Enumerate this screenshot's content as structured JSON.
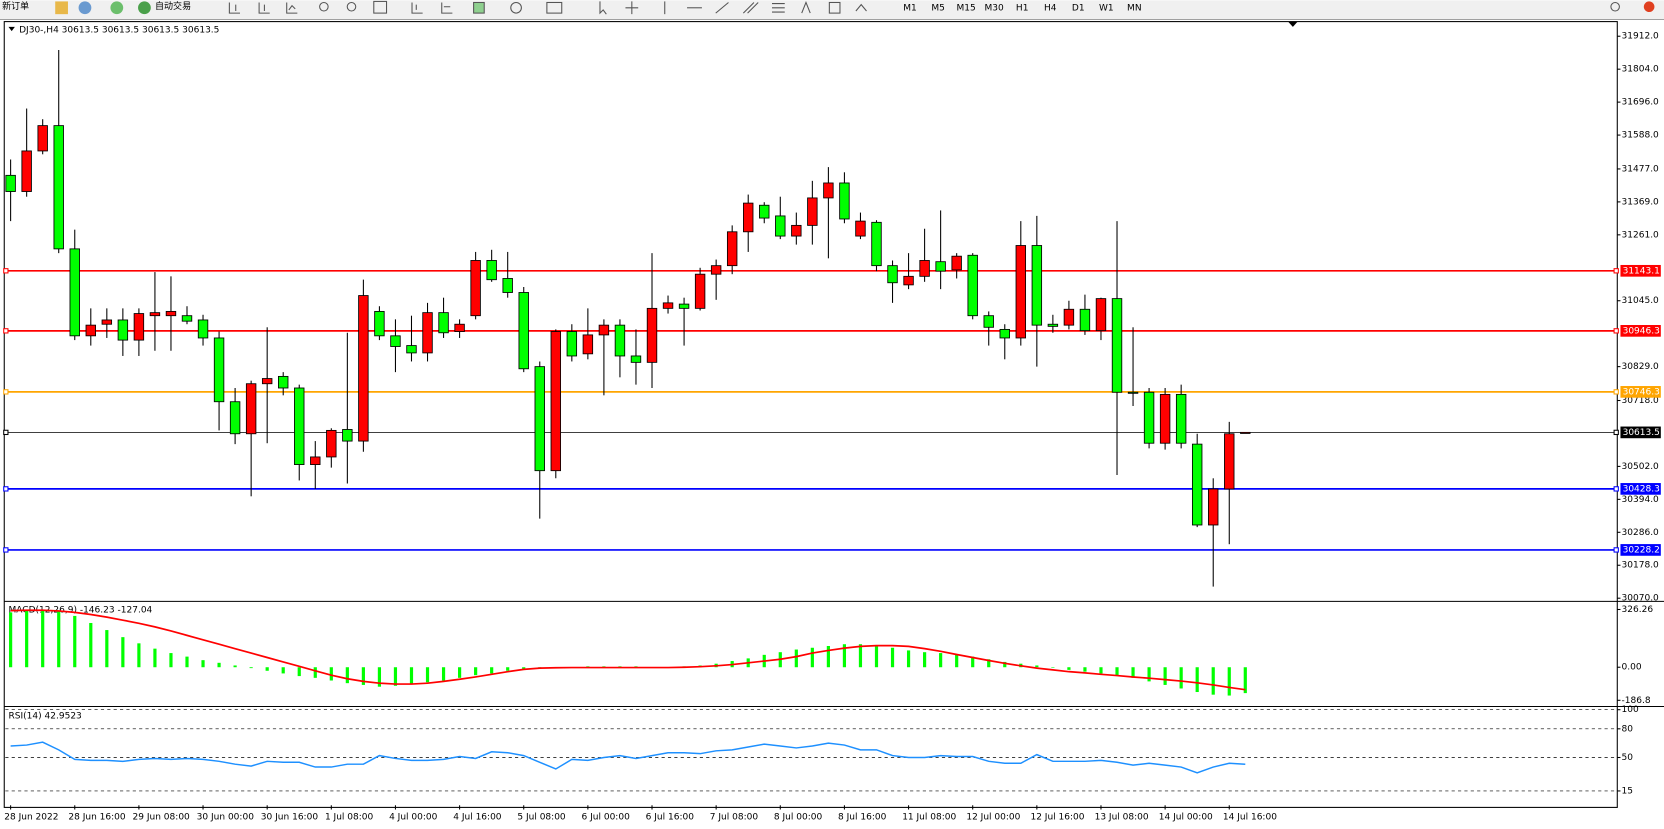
{
  "toolbar": {
    "new_order": "新订单",
    "auto_trading": "自动交易",
    "timeframes": [
      "M1",
      "M5",
      "M15",
      "M30",
      "H1",
      "H4",
      "D1",
      "W1",
      "MN"
    ]
  },
  "chart_data": [
    {
      "type": "candlestick",
      "title": "DJ30-,H4  30613.5 30613.5 30613.5 30613.5",
      "up_color": "#ff0000",
      "down_color": "#00ff00",
      "categories": [
        "28 Jun 2022",
        null,
        null,
        null,
        "28 Jun 16:00",
        null,
        null,
        null,
        "29 Jun 08:00",
        null,
        null,
        null,
        "30 Jun 00:00",
        null,
        null,
        null,
        "30 Jun 16:00",
        null,
        null,
        null,
        "1 Jul 08:00",
        null,
        null,
        null,
        "4 Jul 00:00",
        null,
        null,
        null,
        "4 Jul 16:00",
        null,
        null,
        null,
        "5 Jul 08:00",
        null,
        null,
        null,
        "6 Jul 00:00",
        null,
        null,
        null,
        "6 Jul 16:00",
        null,
        null,
        null,
        "7 Jul 08:00",
        null,
        null,
        null,
        "8 Jul 00:00",
        null,
        null,
        null,
        "8 Jul 16:00",
        null,
        null,
        null,
        "11 Jul 08:00",
        null,
        null,
        null,
        "12 Jul 00:00",
        null,
        null,
        null,
        "12 Jul 16:00",
        null,
        null,
        null,
        "13 Jul 08:00",
        null,
        null,
        null,
        "14 Jul 00:00",
        null,
        null,
        null,
        "14 Jul 16:00",
        null
      ],
      "open": [
        31456,
        31403,
        31536,
        31619,
        31215,
        30930,
        30968,
        30982,
        30916,
        30996,
        30996,
        30996,
        30982,
        30923,
        30714,
        30609,
        30773,
        30797,
        30759,
        30508,
        30533,
        30623,
        30585,
        31010,
        30930,
        30898,
        30874,
        31006,
        30944,
        30996,
        31177,
        31118,
        31072,
        30829,
        30488,
        30944,
        30871,
        30933,
        30965,
        30864,
        30843,
        31020,
        31034,
        31020,
        31132,
        31160,
        31271,
        31358,
        31323,
        31257,
        31292,
        31382,
        31431,
        31257,
        31302,
        31160,
        31097,
        31125,
        31173,
        31146,
        31194,
        30996,
        30951,
        30923,
        31226,
        30968,
        30965,
        31017,
        30947,
        31052,
        30745,
        30745,
        30578,
        30738,
        30575,
        30310,
        30428,
        30613.5
      ],
      "high": [
        31508,
        31675,
        31640,
        31867,
        31278,
        31020,
        31020,
        31020,
        31020,
        31139,
        31125,
        31027,
        30999,
        30944,
        30759,
        30783,
        30958,
        30811,
        30770,
        30585,
        30627,
        30940,
        31114,
        31027,
        30984,
        30996,
        31038,
        31055,
        30984,
        31205,
        31212,
        31205,
        31090,
        30846,
        30951,
        30968,
        31020,
        30984,
        30984,
        30951,
        31201,
        31062,
        31055,
        31153,
        31180,
        31292,
        31393,
        31368,
        31386,
        31334,
        31438,
        31483,
        31466,
        31334,
        31309,
        31177,
        31201,
        31281,
        31341,
        31201,
        31201,
        31010,
        30968,
        31306,
        31323,
        30999,
        31045,
        31065,
        31055,
        31306,
        30958,
        30759,
        30759,
        30770,
        30609,
        30463,
        30648,
        30613.5
      ],
      "low": [
        31306,
        31386,
        31525,
        31201,
        30916,
        30898,
        30923,
        30864,
        30864,
        30881,
        30881,
        30968,
        30898,
        30620,
        30575,
        30404,
        30578,
        30735,
        30456,
        30428,
        30498,
        30446,
        30550,
        30916,
        30811,
        30846,
        30846,
        30923,
        30923,
        30984,
        31107,
        31055,
        30811,
        30331,
        30463,
        30846,
        30853,
        30735,
        30794,
        30770,
        30759,
        31003,
        30898,
        31013,
        31048,
        31132,
        31205,
        31299,
        31247,
        31229,
        31229,
        31184,
        31299,
        31247,
        31142,
        31038,
        31083,
        31107,
        31083,
        31118,
        30984,
        30898,
        30853,
        30898,
        30829,
        30940,
        30951,
        30933,
        30916,
        30474,
        30700,
        30561,
        30557,
        30561,
        30303,
        30108,
        30247,
        30613.5
      ],
      "close": [
        31403,
        31536,
        31619,
        31215,
        30930,
        30965,
        30982,
        30916,
        31003,
        31006,
        31010,
        30978,
        30923,
        30714,
        30609,
        30773,
        30790,
        30759,
        30508,
        30533,
        30620,
        30585,
        31062,
        30930,
        30895,
        30874,
        31006,
        30940,
        30968,
        31177,
        31114,
        31072,
        30822,
        30488,
        30944,
        30864,
        30933,
        30965,
        30864,
        30843,
        31020,
        31038,
        31020,
        31132,
        31160,
        31271,
        31365,
        31316,
        31257,
        31292,
        31382,
        31431,
        31313,
        31306,
        31160,
        31104,
        31125,
        31177,
        31142,
        31191,
        30996,
        30958,
        30923,
        31226,
        30965,
        30961,
        31017,
        30947,
        31052,
        30745,
        30742,
        30578,
        30738,
        30578,
        30310,
        30428,
        30609,
        30613.5
      ],
      "ylim": [
        30063,
        31953
      ],
      "yticks": [
        {
          "value": 31912,
          "label": "31912.0"
        },
        {
          "value": 31804,
          "label": "31804.0"
        },
        {
          "value": 31696,
          "label": "31696.0"
        },
        {
          "value": 31588,
          "label": "31588.0"
        },
        {
          "value": 31477,
          "label": "31477.0"
        },
        {
          "value": 31369,
          "label": "31369.0"
        },
        {
          "value": 31261,
          "label": "31261.0"
        },
        {
          "value": 31045,
          "label": "31045.0"
        },
        {
          "value": 30829,
          "label": "30829.0"
        },
        {
          "value": 30718,
          "label": "30718.0"
        },
        {
          "value": 30502,
          "label": "30502.0"
        },
        {
          "value": 30394,
          "label": "30394.0"
        },
        {
          "value": 30286,
          "label": "30286.0"
        },
        {
          "value": 30178,
          "label": "30178.0"
        },
        {
          "value": 30070,
          "label": "30070.0"
        }
      ],
      "hlines": [
        {
          "value": 31143.1,
          "color": "#ff0000"
        },
        {
          "value": 30946.3,
          "color": "#ff0000"
        },
        {
          "value": 30746.3,
          "color": "#ffa500"
        },
        {
          "value": 30613.5,
          "color": "#000000"
        },
        {
          "value": 30428.3,
          "color": "#0000ff"
        },
        {
          "value": 30228.2,
          "color": "#0000ff"
        }
      ]
    },
    {
      "type": "macd",
      "title": "MACD(12,26,9) -146.23 -127.04",
      "histogram": {
        "color": "#00ff00",
        "values": [
          310,
          325,
          326,
          320,
          290,
          250,
          210,
          170,
          135,
          105,
          80,
          60,
          40,
          25,
          10,
          -5,
          -20,
          -35,
          -50,
          -60,
          -75,
          -90,
          -100,
          -110,
          -105,
          -95,
          -85,
          -75,
          -60,
          -45,
          -35,
          -20,
          -10,
          0,
          -5,
          0,
          5,
          5,
          5,
          5,
          0,
          0,
          5,
          10,
          20,
          35,
          50,
          70,
          85,
          100,
          110,
          120,
          130,
          130,
          120,
          110,
          95,
          85,
          80,
          70,
          60,
          45,
          30,
          20,
          10,
          0,
          -15,
          -25,
          -35,
          -45,
          -60,
          -80,
          -100,
          -120,
          -140,
          -155,
          -160,
          -146.23
        ]
      },
      "signal": {
        "color": "#ff0000",
        "values": [
          320,
          322,
          322,
          318,
          310,
          298,
          283,
          266,
          248,
          228,
          205,
          180,
          155,
          130,
          105,
          80,
          55,
          30,
          5,
          -20,
          -45,
          -65,
          -80,
          -90,
          -95,
          -95,
          -90,
          -80,
          -68,
          -55,
          -40,
          -25,
          -12,
          -5,
          -3,
          -2,
          -2,
          -2,
          -2,
          -2,
          -2,
          -2,
          0,
          3,
          8,
          15,
          25,
          35,
          45,
          60,
          80,
          95,
          108,
          118,
          122,
          122,
          118,
          105,
          90,
          72,
          55,
          38,
          22,
          8,
          -5,
          -15,
          -25,
          -32,
          -40,
          -47,
          -55,
          -62,
          -70,
          -78,
          -88,
          -100,
          -114,
          -127.04
        ]
      },
      "ylim": [
        -210,
        360
      ],
      "yticks": [
        326.26,
        {
          "value": 0,
          "label": "0.00"
        },
        -186.8
      ]
    },
    {
      "type": "line",
      "title": "RSI(14) 42.9523",
      "color": "#1e90ff",
      "values": [
        62,
        63,
        66,
        58,
        48,
        47,
        47,
        46,
        48,
        49,
        48,
        49,
        48,
        46,
        43,
        41,
        46,
        45,
        45,
        40,
        40,
        43,
        43,
        52,
        49,
        47,
        47,
        48,
        51,
        49,
        56,
        55,
        52,
        45,
        38,
        48,
        47,
        50,
        52,
        49,
        52,
        55,
        55,
        54,
        57,
        58,
        61,
        64,
        62,
        60,
        62,
        65,
        63,
        58,
        58,
        52,
        50,
        50,
        52,
        51,
        51,
        46,
        44,
        44,
        53,
        46,
        46,
        46,
        47,
        45,
        42,
        44,
        42,
        40,
        34,
        40,
        44,
        42.9523
      ],
      "ylim": [
        0,
        100
      ],
      "yticks": [
        100,
        80,
        50,
        15
      ],
      "grid": true
    }
  ]
}
